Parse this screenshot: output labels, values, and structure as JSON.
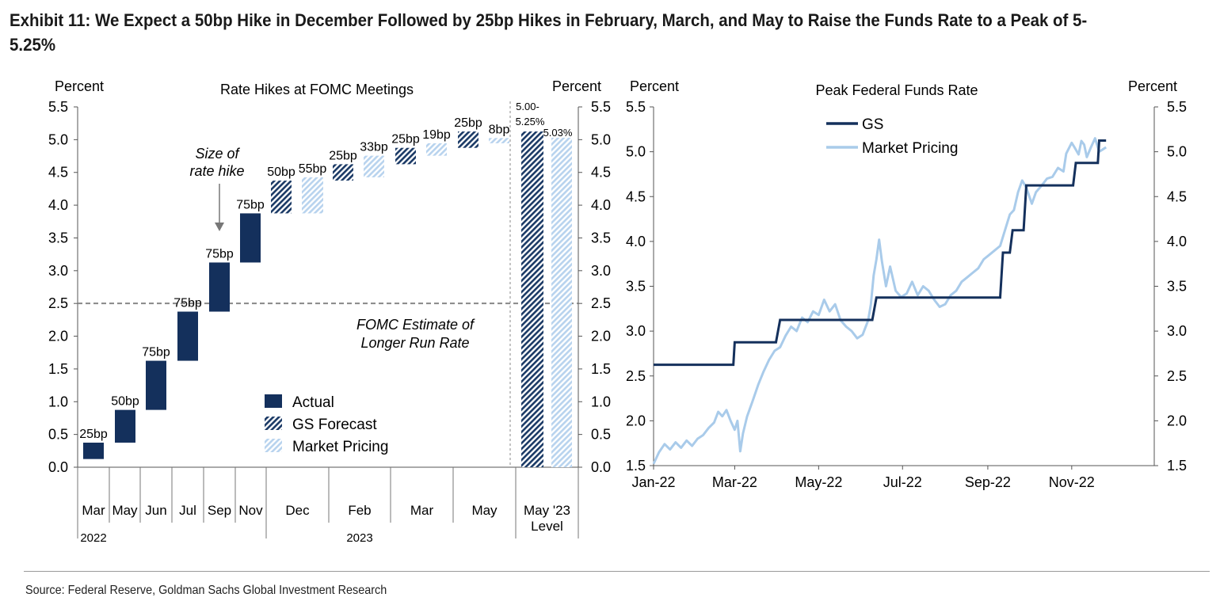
{
  "title": "Exhibit 11: We Expect a 50bp Hike in December Followed by 25bp Hikes in February, March, and May to Raise the Funds Rate to a Peak of 5-5.25%",
  "source": "Source: Federal Reserve, Goldman Sachs Global Investment Research",
  "colors": {
    "actual": "#14305c",
    "gs": "#1b3a66",
    "market": "#b8d3ee",
    "gs_line": "#14305c",
    "market_line": "#a9cbea",
    "dashed": "#888888"
  },
  "chart_data": [
    {
      "type": "bar",
      "title": "Rate Hikes at FOMC Meetings",
      "ylabel_left": "Percent",
      "ylabel_right": "Percent",
      "ylim": [
        0,
        5.5
      ],
      "yticks": [
        "0.0",
        "0.5",
        "1.0",
        "1.5",
        "2.0",
        "2.5",
        "3.0",
        "3.5",
        "4.0",
        "4.5",
        "5.0",
        "5.5"
      ],
      "categories": [
        "Mar",
        "May",
        "Jun",
        "Jul",
        "Sep",
        "Nov",
        "Dec",
        "Feb",
        "Mar",
        "May",
        "May '23 Level"
      ],
      "year_labels": [
        "2022",
        "2023"
      ],
      "bars": [
        {
          "category": "Mar",
          "series": "Actual",
          "start": 0.125,
          "end": 0.375,
          "label": "25bp"
        },
        {
          "category": "May",
          "series": "Actual",
          "start": 0.375,
          "end": 0.875,
          "label": "50bp"
        },
        {
          "category": "Jun",
          "series": "Actual",
          "start": 0.875,
          "end": 1.625,
          "label": "75bp"
        },
        {
          "category": "Jul",
          "series": "Actual",
          "start": 1.625,
          "end": 2.375,
          "label": "75bp"
        },
        {
          "category": "Sep",
          "series": "Actual",
          "start": 2.375,
          "end": 3.125,
          "label": "75bp"
        },
        {
          "category": "Nov",
          "series": "Actual",
          "start": 3.125,
          "end": 3.875,
          "label": "75bp"
        },
        {
          "category": "Dec",
          "series": "GS Forecast",
          "start": 3.875,
          "end": 4.375,
          "label": "50bp"
        },
        {
          "category": "Dec",
          "series": "Market Pricing",
          "start": 3.875,
          "end": 4.425,
          "label": "55bp"
        },
        {
          "category": "Feb",
          "series": "GS Forecast",
          "start": 4.375,
          "end": 4.625,
          "label": "25bp"
        },
        {
          "category": "Feb",
          "series": "Market Pricing",
          "start": 4.425,
          "end": 4.755,
          "label": "33bp"
        },
        {
          "category": "Mar",
          "series": "GS Forecast",
          "start": 4.625,
          "end": 4.875,
          "label": "25bp"
        },
        {
          "category": "Mar",
          "series": "Market Pricing",
          "start": 4.755,
          "end": 4.945,
          "label": "19bp"
        },
        {
          "category": "May",
          "series": "GS Forecast",
          "start": 4.875,
          "end": 5.125,
          "label": "25bp"
        },
        {
          "category": "May",
          "series": "Market Pricing",
          "start": 4.945,
          "end": 5.025,
          "label": "8bp"
        },
        {
          "category": "May '23 Level",
          "series": "GS Forecast",
          "start": 0,
          "end": 5.125,
          "label": "5.00-5.25%"
        },
        {
          "category": "May '23 Level",
          "series": "Market Pricing",
          "start": 0,
          "end": 5.03,
          "label": "5.03%"
        }
      ],
      "reference_line": {
        "value": 2.5,
        "label": "FOMC Estimate of Longer Run Rate"
      },
      "annotation": "Size of rate hike",
      "legend": [
        "Actual",
        "GS Forecast",
        "Market Pricing"
      ],
      "legend_position": "bottom-center"
    },
    {
      "type": "line",
      "title": "Peak Federal Funds Rate",
      "ylabel_left": "Percent",
      "ylabel_right": "Percent",
      "ylim": [
        1.5,
        5.5
      ],
      "yticks": [
        "1.5",
        "2.0",
        "2.5",
        "3.0",
        "3.5",
        "4.0",
        "4.5",
        "5.0",
        "5.5"
      ],
      "xticks": [
        "Jan-22",
        "Mar-22",
        "May-22",
        "Jul-22",
        "Sep-22",
        "Nov-22"
      ],
      "xlim": [
        "2022-01-01",
        "2022-12-31"
      ],
      "legend_position": "top-left",
      "series": [
        {
          "name": "GS",
          "points": [
            [
              "2022-01-01",
              2.625
            ],
            [
              "2022-02-28",
              2.625
            ],
            [
              "2022-03-01",
              2.875
            ],
            [
              "2022-03-31",
              2.875
            ],
            [
              "2022-04-03",
              3.125
            ],
            [
              "2022-06-09",
              3.125
            ],
            [
              "2022-06-12",
              3.375
            ],
            [
              "2022-09-10",
              3.375
            ],
            [
              "2022-09-12",
              3.875
            ],
            [
              "2022-09-17",
              3.875
            ],
            [
              "2022-09-19",
              4.125
            ],
            [
              "2022-09-27",
              4.125
            ],
            [
              "2022-09-29",
              4.625
            ],
            [
              "2022-11-02",
              4.625
            ],
            [
              "2022-11-04",
              4.875
            ],
            [
              "2022-11-20",
              4.875
            ],
            [
              "2022-11-21",
              5.125
            ],
            [
              "2022-11-26",
              5.125
            ]
          ]
        },
        {
          "name": "Market Pricing",
          "points": [
            [
              "2022-01-01",
              1.52
            ],
            [
              "2022-01-05",
              1.65
            ],
            [
              "2022-01-09",
              1.74
            ],
            [
              "2022-01-13",
              1.68
            ],
            [
              "2022-01-17",
              1.76
            ],
            [
              "2022-01-21",
              1.7
            ],
            [
              "2022-01-25",
              1.78
            ],
            [
              "2022-01-29",
              1.72
            ],
            [
              "2022-02-02",
              1.8
            ],
            [
              "2022-02-06",
              1.84
            ],
            [
              "2022-02-10",
              1.92
            ],
            [
              "2022-02-14",
              1.98
            ],
            [
              "2022-02-17",
              2.1
            ],
            [
              "2022-02-20",
              2.05
            ],
            [
              "2022-02-23",
              2.12
            ],
            [
              "2022-02-26",
              2.0
            ],
            [
              "2022-03-01",
              1.9
            ],
            [
              "2022-03-03",
              2.0
            ],
            [
              "2022-03-05",
              1.66
            ],
            [
              "2022-03-07",
              1.86
            ],
            [
              "2022-03-10",
              2.05
            ],
            [
              "2022-03-14",
              2.22
            ],
            [
              "2022-03-18",
              2.4
            ],
            [
              "2022-03-22",
              2.55
            ],
            [
              "2022-03-26",
              2.68
            ],
            [
              "2022-03-30",
              2.78
            ],
            [
              "2022-04-03",
              2.82
            ],
            [
              "2022-04-07",
              2.95
            ],
            [
              "2022-04-11",
              3.05
            ],
            [
              "2022-04-15",
              3.0
            ],
            [
              "2022-04-19",
              3.15
            ],
            [
              "2022-04-23",
              3.1
            ],
            [
              "2022-04-27",
              3.22
            ],
            [
              "2022-05-01",
              3.18
            ],
            [
              "2022-05-05",
              3.35
            ],
            [
              "2022-05-09",
              3.22
            ],
            [
              "2022-05-13",
              3.3
            ],
            [
              "2022-05-17",
              3.12
            ],
            [
              "2022-05-21",
              3.05
            ],
            [
              "2022-05-25",
              3.0
            ],
            [
              "2022-05-29",
              2.92
            ],
            [
              "2022-06-02",
              2.96
            ],
            [
              "2022-06-06",
              3.12
            ],
            [
              "2022-06-08",
              3.3
            ],
            [
              "2022-06-10",
              3.62
            ],
            [
              "2022-06-12",
              3.8
            ],
            [
              "2022-06-14",
              4.02
            ],
            [
              "2022-06-16",
              3.78
            ],
            [
              "2022-06-19",
              3.5
            ],
            [
              "2022-06-22",
              3.72
            ],
            [
              "2022-06-26",
              3.45
            ],
            [
              "2022-06-30",
              3.38
            ],
            [
              "2022-07-04",
              3.42
            ],
            [
              "2022-07-08",
              3.55
            ],
            [
              "2022-07-12",
              3.4
            ],
            [
              "2022-07-16",
              3.5
            ],
            [
              "2022-07-20",
              3.45
            ],
            [
              "2022-07-24",
              3.35
            ],
            [
              "2022-07-28",
              3.27
            ],
            [
              "2022-08-01",
              3.3
            ],
            [
              "2022-08-05",
              3.4
            ],
            [
              "2022-08-09",
              3.45
            ],
            [
              "2022-08-13",
              3.55
            ],
            [
              "2022-08-17",
              3.6
            ],
            [
              "2022-08-21",
              3.65
            ],
            [
              "2022-08-25",
              3.7
            ],
            [
              "2022-08-29",
              3.8
            ],
            [
              "2022-09-02",
              3.85
            ],
            [
              "2022-09-06",
              3.9
            ],
            [
              "2022-09-10",
              3.95
            ],
            [
              "2022-09-13",
              4.1
            ],
            [
              "2022-09-15",
              4.2
            ],
            [
              "2022-09-17",
              4.3
            ],
            [
              "2022-09-20",
              4.35
            ],
            [
              "2022-09-23",
              4.55
            ],
            [
              "2022-09-26",
              4.68
            ],
            [
              "2022-09-29",
              4.6
            ],
            [
              "2022-10-03",
              4.42
            ],
            [
              "2022-10-06",
              4.55
            ],
            [
              "2022-10-10",
              4.62
            ],
            [
              "2022-10-14",
              4.7
            ],
            [
              "2022-10-18",
              4.72
            ],
            [
              "2022-10-22",
              4.82
            ],
            [
              "2022-10-26",
              4.78
            ],
            [
              "2022-10-28",
              4.98
            ],
            [
              "2022-11-01",
              5.1
            ],
            [
              "2022-11-03",
              5.05
            ],
            [
              "2022-11-06",
              4.97
            ],
            [
              "2022-11-08",
              5.12
            ],
            [
              "2022-11-10",
              5.08
            ],
            [
              "2022-11-12",
              4.94
            ],
            [
              "2022-11-15",
              5.05
            ],
            [
              "2022-11-18",
              5.15
            ],
            [
              "2022-11-21",
              5.0
            ],
            [
              "2022-11-24",
              5.03
            ],
            [
              "2022-11-26",
              5.05
            ]
          ]
        }
      ]
    }
  ]
}
